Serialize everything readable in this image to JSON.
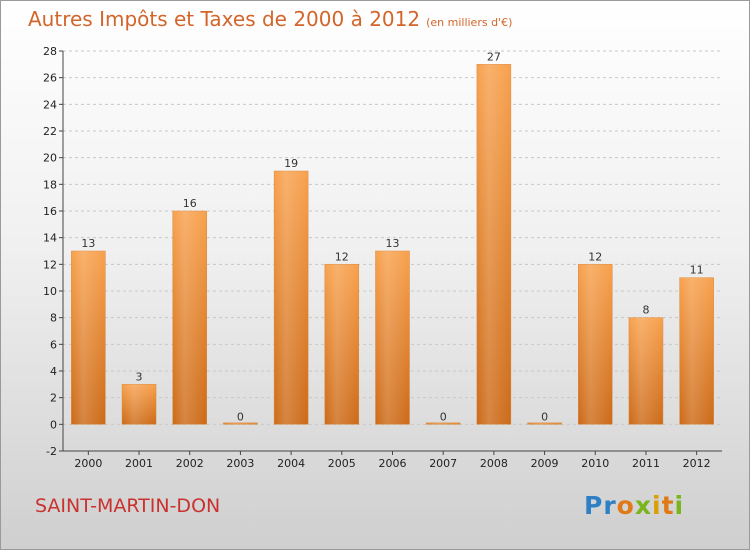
{
  "header": {
    "title": "Autres Impôts et Taxes de 2000 à 2012",
    "subtitle": "(en milliers d'€)"
  },
  "footer": {
    "commune": "SAINT-MARTIN-DON",
    "logo": [
      {
        "ch": "P",
        "color": "#2f7fc4"
      },
      {
        "ch": "r",
        "color": "#2f7fc4"
      },
      {
        "ch": "o",
        "color": "#e07a18"
      },
      {
        "ch": "x",
        "color": "#7ab51d"
      },
      {
        "ch": "i",
        "color": "#d8a000"
      },
      {
        "ch": "t",
        "color": "#e07a18"
      },
      {
        "ch": "i",
        "color": "#7ab51d"
      }
    ]
  },
  "chart_data": {
    "type": "bar",
    "title": "Autres Impôts et Taxes de 2000 à 2012",
    "subtitle": "(en milliers d'€)",
    "categories": [
      "2000",
      "2001",
      "2002",
      "2003",
      "2004",
      "2005",
      "2006",
      "2007",
      "2008",
      "2009",
      "2010",
      "2011",
      "2012"
    ],
    "values": [
      13,
      3,
      16,
      0,
      19,
      12,
      13,
      0,
      27,
      0,
      12,
      8,
      11
    ],
    "ylim": [
      -2,
      28
    ],
    "yticks": [
      -2,
      0,
      2,
      4,
      6,
      8,
      10,
      12,
      14,
      16,
      18,
      20,
      22,
      24,
      26,
      28
    ],
    "grid": true,
    "bar_color": "#f0923a"
  }
}
